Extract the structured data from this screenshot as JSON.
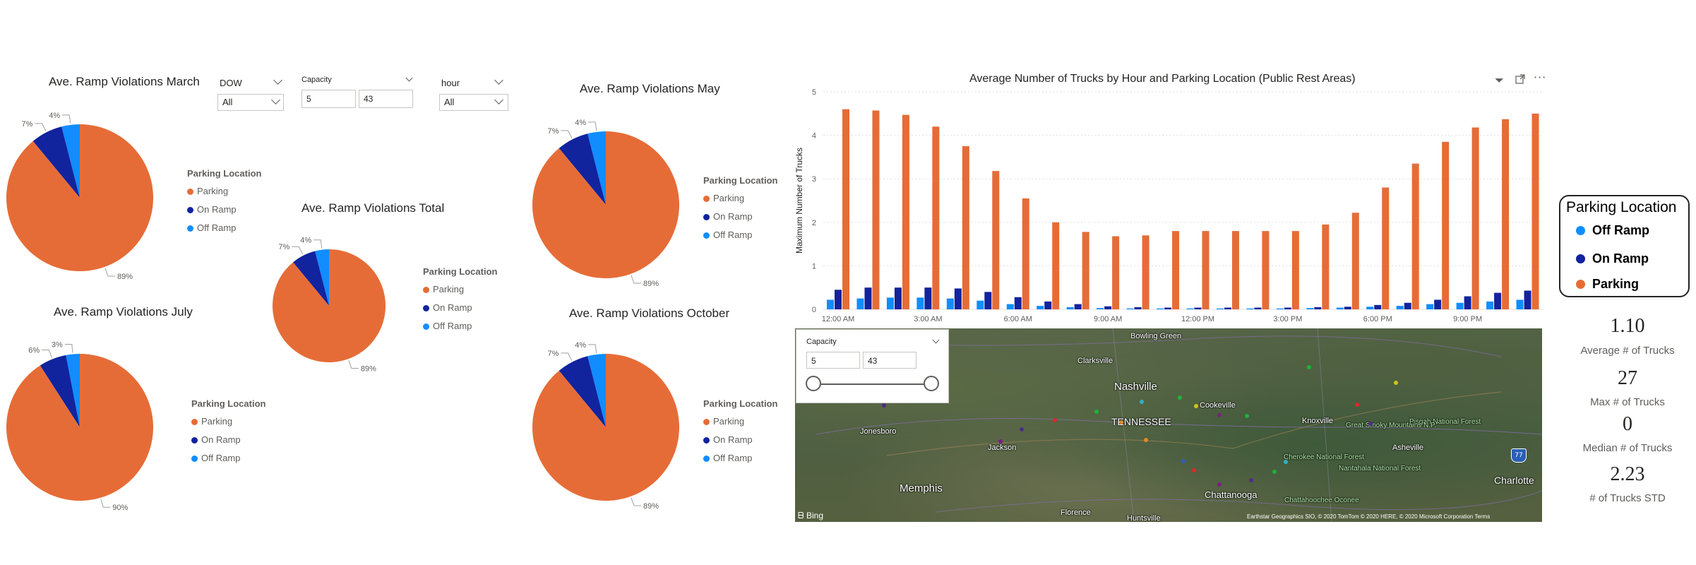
{
  "colors": {
    "parking": "#E66C37",
    "on_ramp": "#12239E",
    "off_ramp": "#118DFF"
  },
  "pies": [
    {
      "id": "march",
      "title": "Ave. Ramp Violations March",
      "pct": {
        "parking": "89%",
        "on_ramp": "7%",
        "off_ramp": "4%"
      },
      "values": {
        "parking": 89,
        "on_ramp": 7,
        "off_ramp": 4
      }
    },
    {
      "id": "total",
      "title": "Ave. Ramp Violations Total",
      "pct": {
        "parking": "89%",
        "on_ramp": "7%",
        "off_ramp": "4%"
      },
      "values": {
        "parking": 89,
        "on_ramp": 7,
        "off_ramp": 4
      }
    },
    {
      "id": "may",
      "title": "Ave. Ramp Violations May",
      "pct": {
        "parking": "89%",
        "on_ramp": "7%",
        "off_ramp": "4%"
      },
      "values": {
        "parking": 89,
        "on_ramp": 7,
        "off_ramp": 4
      }
    },
    {
      "id": "july",
      "title": "Ave. Ramp Violations July",
      "pct": {
        "parking": "90%",
        "on_ramp": "6%",
        "off_ramp": "3%"
      },
      "values": {
        "parking": 90,
        "on_ramp": 6,
        "off_ramp": 3
      }
    },
    {
      "id": "october",
      "title": "Ave. Ramp Violations October",
      "pct": {
        "parking": "89%",
        "on_ramp": "7%",
        "off_ramp": "4%"
      },
      "values": {
        "parking": 89,
        "on_ramp": 7,
        "off_ramp": 4
      }
    }
  ],
  "legend": {
    "title": "Parking Location",
    "parking": "Parking",
    "on_ramp": "On Ramp",
    "off_ramp": "Off Ramp"
  },
  "slicers": {
    "dow": {
      "label": "DOW",
      "value": "All"
    },
    "capacity": {
      "label": "Capacity",
      "min": "5",
      "max": "43"
    },
    "hour": {
      "label": "hour",
      "value": "All"
    }
  },
  "chart_data": {
    "type": "bar",
    "title": "Average Number of Trucks by Hour and Parking Location (Public Rest Areas)",
    "ylabel": "Maximum Number of Trucks",
    "xlabel": "",
    "ylim": [
      0,
      5
    ],
    "yticks": [
      "0",
      "1",
      "2",
      "3",
      "4",
      "5"
    ],
    "categories": [
      "12:00 AM",
      "1:00 AM",
      "2:00 AM",
      "3:00 AM",
      "4:00 AM",
      "5:00 AM",
      "6:00 AM",
      "7:00 AM",
      "8:00 AM",
      "9:00 AM",
      "10:00 AM",
      "11:00 AM",
      "12:00 PM",
      "1:00 PM",
      "2:00 PM",
      "3:00 PM",
      "4:00 PM",
      "5:00 PM",
      "6:00 PM",
      "7:00 PM",
      "8:00 PM",
      "9:00 PM",
      "10:00 PM",
      "11:00 PM"
    ],
    "xtick_labels": [
      "12:00 AM",
      "3:00 AM",
      "6:00 AM",
      "9:00 AM",
      "12:00 PM",
      "3:00 PM",
      "6:00 PM",
      "9:00 PM"
    ],
    "series": [
      {
        "name": "Off Ramp",
        "values": [
          0.22,
          0.25,
          0.27,
          0.27,
          0.25,
          0.2,
          0.12,
          0.08,
          0.05,
          0.03,
          0.02,
          0.02,
          0.02,
          0.02,
          0.02,
          0.02,
          0.03,
          0.04,
          0.06,
          0.08,
          0.12,
          0.15,
          0.18,
          0.22
        ]
      },
      {
        "name": "On Ramp",
        "values": [
          0.45,
          0.5,
          0.5,
          0.5,
          0.48,
          0.4,
          0.28,
          0.18,
          0.12,
          0.07,
          0.05,
          0.04,
          0.04,
          0.04,
          0.04,
          0.04,
          0.05,
          0.06,
          0.1,
          0.15,
          0.22,
          0.3,
          0.38,
          0.43
        ]
      },
      {
        "name": "Parking",
        "values": [
          4.6,
          4.57,
          4.47,
          4.2,
          3.75,
          3.18,
          2.55,
          2.0,
          1.78,
          1.68,
          1.7,
          1.8,
          1.8,
          1.8,
          1.8,
          1.8,
          1.95,
          2.22,
          2.8,
          3.35,
          3.85,
          4.18,
          4.37,
          4.5
        ]
      }
    ]
  },
  "chart_legend": {
    "title": "Parking Location",
    "items": [
      "Off Ramp",
      "On Ramp",
      "Parking"
    ]
  },
  "map": {
    "capacity_label": "Capacity",
    "min": "5",
    "max": "43",
    "labels": {
      "bowling_green": "Bowling Green",
      "clarksville": "Clarksville",
      "nashville": "Nashville",
      "cookeville": "Cookeville",
      "knoxville": "Knoxville",
      "jonesboro": "Jonesboro",
      "tennessee": "TENNESSEE",
      "jackson": "Jackson",
      "memphis": "Memphis",
      "chattanooga": "Chattanooga",
      "florence": "Florence",
      "huntsville": "Huntsville",
      "asheville": "Asheville",
      "charlotte": "Charlotte",
      "pisgah": "Pisgah National Forest",
      "cherokee": "Cherokee National Forest",
      "nantahala": "Nantahala National Forest",
      "smoky": "Great Smoky Mountains N.P.",
      "chattahoochee": "Chattahoochee Oconee",
      "interstate": "77"
    },
    "bing": "Bing",
    "attribution": "Earthstar Geographics SIO, © 2020 TomTom © 2020 HERE, © 2020 Microsoft Corporation  Terms"
  },
  "stats": [
    {
      "value": "1.10",
      "label": "Average # of Trucks"
    },
    {
      "value": "27",
      "label": "Max # of Trucks"
    },
    {
      "value": "0",
      "label": "Median # of Trucks"
    },
    {
      "value": "2.23",
      "label": "# of Trucks STD"
    }
  ]
}
